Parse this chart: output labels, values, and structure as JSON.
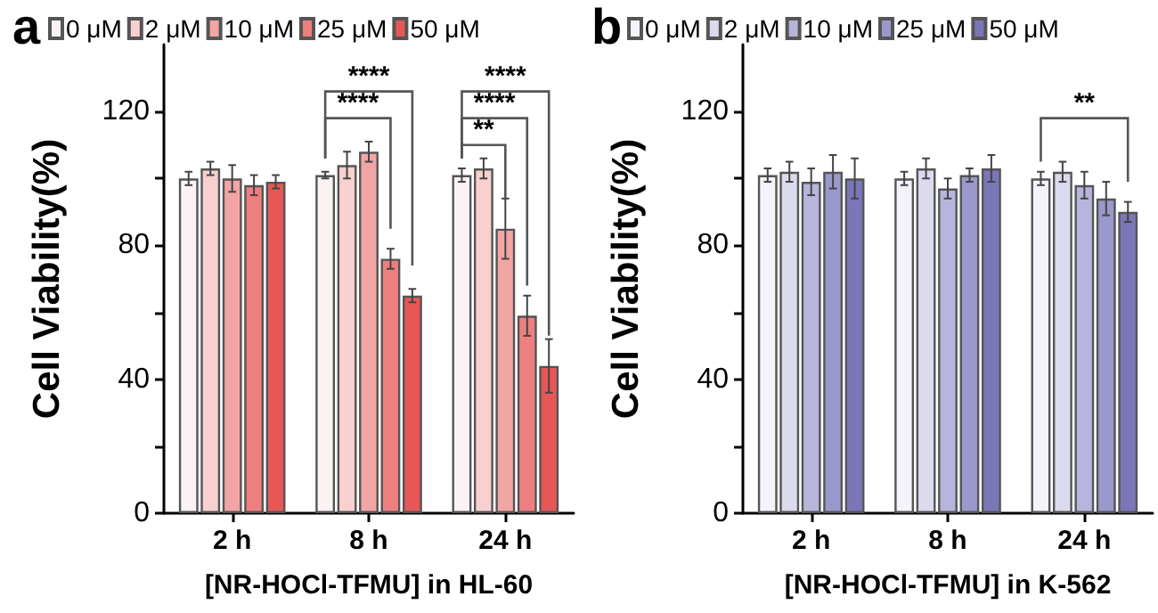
{
  "chart_data": [
    {
      "type": "bar",
      "title": "a",
      "xlabel": "[NR-HOCl-TFMU] in HL-60",
      "ylabel": "Cell Viability(%)",
      "categories": [
        "2 h",
        "8 h",
        "24 h"
      ],
      "ylim": [
        0,
        140
      ],
      "yticks": [
        0,
        {
          "value": 20,
          "label": null
        },
        40,
        {
          "value": 60,
          "label": null
        },
        80,
        {
          "value": 100,
          "label": null
        },
        120
      ],
      "grid": false,
      "legend": "top",
      "series": [
        {
          "name": "0 μM",
          "color": "#fbf3f3",
          "values": [
            100,
            101,
            101
          ],
          "errors": [
            2,
            1,
            2
          ]
        },
        {
          "name": "2 μM",
          "color": "#f8d0d0",
          "values": [
            103,
            104,
            103
          ],
          "errors": [
            2,
            4,
            3
          ]
        },
        {
          "name": "10 μM",
          "color": "#f2a5a5",
          "values": [
            100,
            108,
            85
          ],
          "errors": [
            4,
            3,
            9
          ]
        },
        {
          "name": "25 μM",
          "color": "#ee7f7f",
          "values": [
            98,
            76,
            59
          ],
          "errors": [
            3,
            3,
            6
          ]
        },
        {
          "name": "50 μM",
          "color": "#e85757",
          "values": [
            99,
            65,
            44
          ],
          "errors": [
            2,
            2,
            8
          ]
        }
      ],
      "annotations": [
        "****",
        "****",
        "****",
        "****",
        "**"
      ]
    },
    {
      "type": "bar",
      "title": "b",
      "xlabel": "[NR-HOCl-TFMU] in K-562",
      "ylabel": "Cell Viability(%)",
      "categories": [
        "2 h",
        "8 h",
        "24 h"
      ],
      "ylim": [
        0,
        140
      ],
      "yticks": [
        0,
        {
          "value": 20,
          "label": null
        },
        40,
        {
          "value": 60,
          "label": null
        },
        80,
        {
          "value": 100,
          "label": null
        },
        120
      ],
      "grid": false,
      "legend": "top",
      "series": [
        {
          "name": "0 μM",
          "color": "#f4f3fa",
          "values": [
            101,
            100,
            100
          ],
          "errors": [
            2,
            2,
            2
          ]
        },
        {
          "name": "2 μM",
          "color": "#dcdbee",
          "values": [
            102,
            103,
            102
          ],
          "errors": [
            3,
            3,
            3
          ]
        },
        {
          "name": "10 μM",
          "color": "#b7b5db",
          "values": [
            99,
            97,
            98
          ],
          "errors": [
            4,
            3,
            4
          ]
        },
        {
          "name": "25 μM",
          "color": "#9b98cc",
          "values": [
            102,
            101,
            94
          ],
          "errors": [
            5,
            2,
            5
          ]
        },
        {
          "name": "50 μM",
          "color": "#7b76b8",
          "values": [
            100,
            103,
            90
          ],
          "errors": [
            6,
            4,
            3
          ]
        }
      ],
      "annotations": [
        "**"
      ]
    }
  ]
}
